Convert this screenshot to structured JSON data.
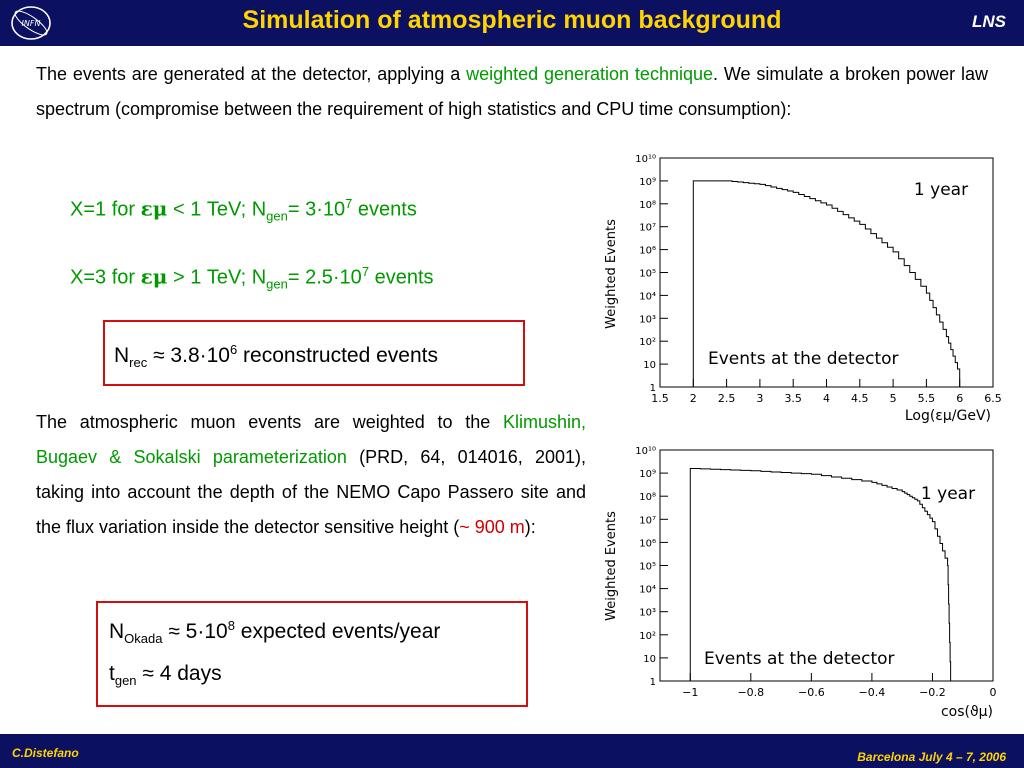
{
  "header": {
    "title": "Simulation of atmospheric muon background",
    "logo_text": "INFN",
    "right_label": "LNS",
    "background": "#0b1060",
    "title_color": "#ffd400"
  },
  "footer": {
    "author": "C.Distefano",
    "event": "Barcelona July 4 – 7, 2006"
  },
  "intro": {
    "before": "The events are generated at the detector, applying a ",
    "highlight": "weighted generation technique",
    "after": ". We simulate a broken power law spectrum (compromise between the requirement of high statistics and CPU time consumption):"
  },
  "rules": [
    {
      "prefix": "X=1 for ",
      "symbol": "εμ",
      "cond": " < 1 TeV;  N",
      "sub": "gen",
      "eq": "= 3·10",
      "sup": "7",
      "suffix": " events"
    },
    {
      "prefix": "X=3 for ",
      "symbol": "εμ",
      "cond": " > 1 TeV;  N",
      "sub": "gen",
      "eq": "= 2.5·10",
      "sup": "7",
      "suffix": " events"
    }
  ],
  "box1": {
    "n": "N",
    "sub": "rec",
    "eq": " ≈ 3.8·10",
    "sup": "6",
    "suffix": " reconstructed events"
  },
  "para2": {
    "before": "The atmospheric muon events are weighted to the ",
    "highlight": "Klimushin, Bugaev & Sokalski parameterization",
    "mid": " (PRD, 64, 014016, 2001), taking into account the depth of the NEMO Capo Passero site and the flux variation inside the detector sensitive height (",
    "depth": "~ 900 m",
    "after": "):"
  },
  "box2": {
    "line1": {
      "n": "N",
      "sub": "Okada",
      "eq": " ≈ 5·10",
      "sup": "8",
      "suffix": " expected events/year"
    },
    "line2": {
      "n": "t",
      "sub": "gen",
      "eq": " ≈ 4 days"
    }
  },
  "chart_data": [
    {
      "type": "line",
      "title": "",
      "ylabel": "Weighted Events",
      "xlabel": "Log(εμ/GeV)",
      "log_y": true,
      "xlim": [
        1.5,
        6.5
      ],
      "ylim_exp": [
        0,
        10
      ],
      "xticks": [
        "1.5",
        "2",
        "2.5",
        "3",
        "3.5",
        "4",
        "4.5",
        "5",
        "5.5",
        "6",
        "6.5"
      ],
      "yticks": [
        "1",
        "10",
        "10²",
        "10³",
        "10⁴",
        "10⁵",
        "10⁶",
        "10⁷",
        "10⁸",
        "10⁹",
        "10¹⁰"
      ],
      "annotations": [
        "1 year",
        "Events at the detector"
      ],
      "x": [
        2.0,
        2.5,
        3.0,
        3.5,
        4.0,
        4.5,
        5.0,
        5.5,
        5.8,
        6.0
      ],
      "log10_y": [
        9.0,
        9.0,
        8.85,
        8.5,
        7.95,
        7.1,
        5.9,
        4.1,
        2.2,
        0.5
      ]
    },
    {
      "type": "line",
      "title": "",
      "ylabel": "Weighted Events",
      "xlabel": "cos(ϑμ)",
      "log_y": true,
      "xlim": [
        -1.1,
        0
      ],
      "ylim_exp": [
        0,
        10
      ],
      "xticks": [
        "−1",
        "−0.8",
        "−0.6",
        "−0.4",
        "−0.2",
        "0"
      ],
      "yticks": [
        "1",
        "10",
        "10²",
        "10³",
        "10⁴",
        "10⁵",
        "10⁶",
        "10⁷",
        "10⁸",
        "10⁹",
        "10¹⁰"
      ],
      "annotations": [
        "1 year",
        "Events at the detector"
      ],
      "x": [
        -1.0,
        -0.8,
        -0.6,
        -0.4,
        -0.3,
        -0.25,
        -0.2,
        -0.15,
        -0.14
      ],
      "log10_y": [
        9.2,
        9.1,
        8.95,
        8.6,
        8.2,
        7.8,
        6.9,
        5.0,
        0.0
      ]
    }
  ]
}
